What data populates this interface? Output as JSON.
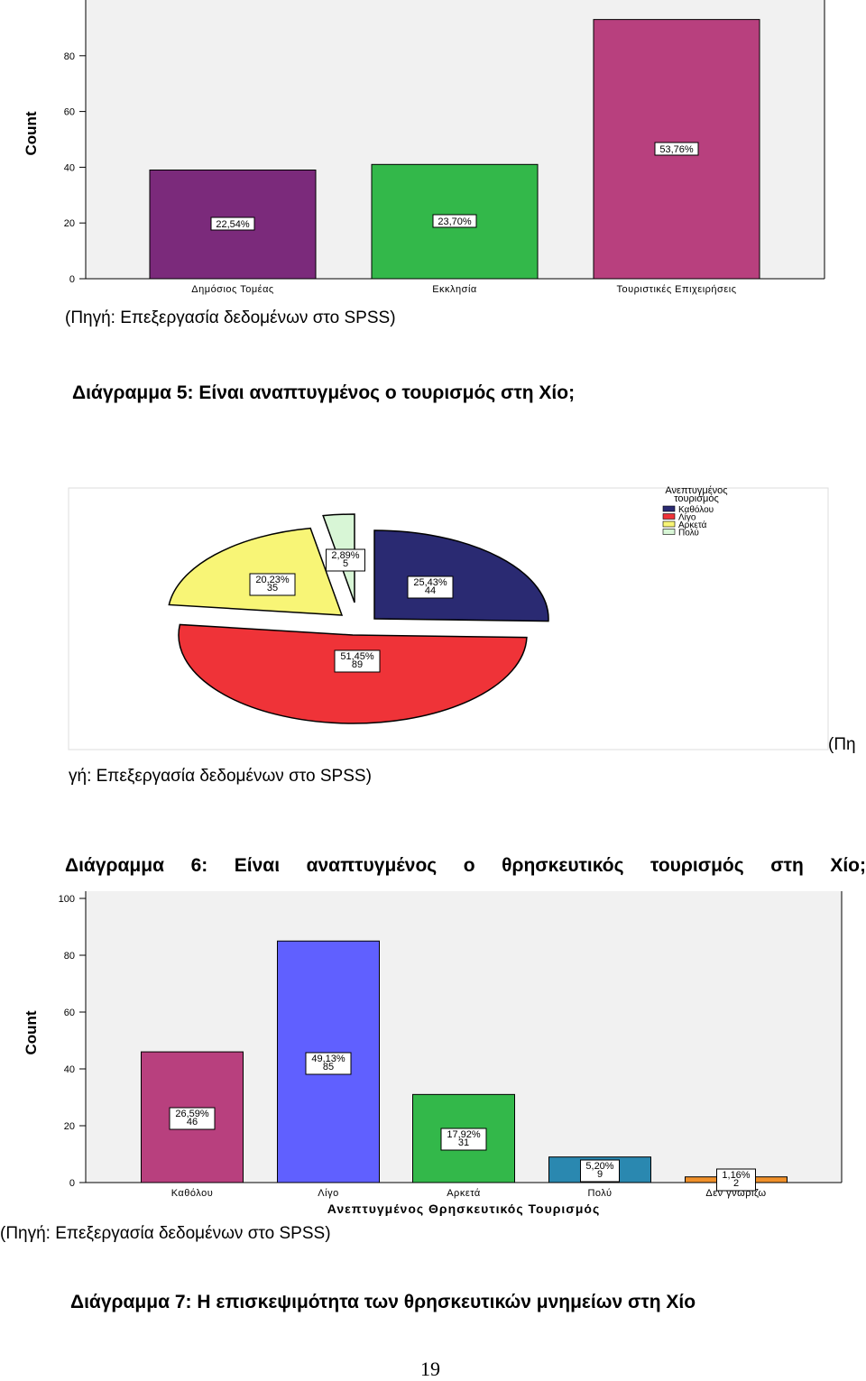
{
  "chart_data": [
    {
      "type": "bar",
      "ylabel": "Count",
      "ylim": [
        0,
        100
      ],
      "yticks": [
        0,
        20,
        40,
        60,
        80
      ],
      "categories": [
        "Δημόσιος Τομέας",
        "Εκκλησία",
        "Τουριστικές Επιχειρήσεις"
      ],
      "values": [
        39,
        41,
        93
      ],
      "labels": [
        "22,54%",
        "23,70%",
        "53,76%"
      ],
      "colors": [
        "#7b2a7b",
        "#33b84a",
        "#b8407e"
      ]
    },
    {
      "type": "pie",
      "legend_title": "Ανεπτυγμένος τουρισμός",
      "legend_position": "top-right",
      "categories": [
        "Καθόλου",
        "Λίγο",
        "Αρκετά",
        "Πολύ"
      ],
      "values": [
        44,
        89,
        35,
        5
      ],
      "labels": [
        {
          "pct": "25,43%",
          "count": "44"
        },
        {
          "pct": "51,45%",
          "count": "89"
        },
        {
          "pct": "20,23%",
          "count": "35"
        },
        {
          "pct": "2,89%",
          "count": "5"
        }
      ],
      "colors": [
        "#2a2a72",
        "#ef3338",
        "#f8f576",
        "#d8f6d6"
      ]
    },
    {
      "type": "bar",
      "ylabel": "Count",
      "xlabel": "Ανεπτυγμένος Θρησκευτικός Τουρισμός",
      "ylim": [
        0,
        100
      ],
      "yticks": [
        0,
        20,
        40,
        60,
        80,
        100
      ],
      "categories": [
        "Καθόλου",
        "Λίγο",
        "Αρκετά",
        "Πολύ",
        "Δεν γνωρίζω"
      ],
      "values": [
        46,
        85,
        31,
        9,
        2
      ],
      "labels": [
        {
          "pct": "26,59%",
          "count": "46"
        },
        {
          "pct": "49,13%",
          "count": "85"
        },
        {
          "pct": "17,92%",
          "count": "31"
        },
        {
          "pct": "5,20%",
          "count": "9"
        },
        {
          "pct": "1,16%",
          "count": "2"
        }
      ],
      "colors": [
        "#b8407e",
        "#6060ff",
        "#33b84a",
        "#2a88b0",
        "#f0902a"
      ]
    }
  ],
  "text": {
    "source1": "(Πηγή: Επεξεργασία δεδομένων στο SPSS)",
    "caption5": "Διάγραμμα 5: Είναι αναπτυγμένος ο τουρισμός στη Χίο;",
    "source2_a": "(Πη",
    "source2_b": "γή: Επεξεργασία δεδομένων στο SPSS)",
    "caption6": "Διάγραμμα 6: Είναι αναπτυγμένος ο θρησκευτικός τουρισμός στη Χίο;",
    "source3": "(Πηγή: Επεξεργασία δεδομένων στο SPSS)",
    "caption7": "Διάγραμμα 7: Η επισκεψιμότητα των θρησκευτικών μνημείων στη Χίο",
    "page_number": "19"
  }
}
